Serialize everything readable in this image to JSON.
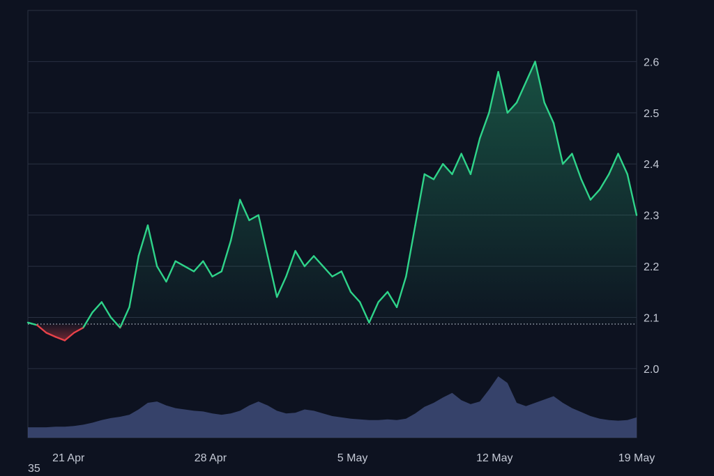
{
  "chart_data": {
    "type": "area",
    "title": "",
    "xlabel": "",
    "ylabel": "",
    "x_ticks": [
      "21 Apr",
      "28 Apr",
      "5 May",
      "12 May",
      "19 May"
    ],
    "y_ticks": [
      "2.0",
      "2.1",
      "2.2",
      "2.3",
      "2.4",
      "2.5",
      "2.6"
    ],
    "ylim": [
      1.865,
      2.7
    ],
    "baseline": 2.087,
    "grid": true,
    "legend": "none",
    "colors": {
      "up_line": "#2fd48a",
      "down_line": "#e8424a",
      "volume": "#3e4b78",
      "grid": "#2a3142",
      "background": "#0d1220"
    },
    "series": [
      {
        "type": "line",
        "x": [
          "Apr 19",
          "Apr 19",
          "Apr 20",
          "Apr 20",
          "Apr 20",
          "Apr 21",
          "Apr 21",
          "Apr 22",
          "Apr 22",
          "Apr 22",
          "Apr 23",
          "Apr 23",
          "Apr 24",
          "Apr 24",
          "Apr 24",
          "Apr 25",
          "Apr 25",
          "Apr 26",
          "Apr 26",
          "Apr 27",
          "Apr 27",
          "Apr 27",
          "Apr 28",
          "Apr 28",
          "Apr 29",
          "Apr 29",
          "Apr 30",
          "Apr 30",
          "May 1",
          "May 1",
          "May 2",
          "May 2",
          "May 3",
          "May 3",
          "May 4",
          "May 4",
          "May 5",
          "May 5",
          "May 6",
          "May 6",
          "May 7",
          "May 7",
          "May 8",
          "May 8",
          "May 9",
          "May 9",
          "May 10",
          "May 10",
          "May 11",
          "May 11",
          "May 11",
          "May 12",
          "May 12",
          "May 13",
          "May 13",
          "May 14",
          "May 14",
          "May 15",
          "May 15",
          "May 16",
          "May 16",
          "May 17",
          "May 17",
          "May 18",
          "May 18",
          "May 19",
          "May 19"
        ],
        "values": [
          2.09,
          2.085,
          2.07,
          2.062,
          2.055,
          2.07,
          2.08,
          2.11,
          2.13,
          2.1,
          2.08,
          2.12,
          2.22,
          2.28,
          2.2,
          2.17,
          2.21,
          2.2,
          2.19,
          2.21,
          2.18,
          2.19,
          2.25,
          2.33,
          2.29,
          2.3,
          2.22,
          2.14,
          2.18,
          2.23,
          2.2,
          2.22,
          2.2,
          2.18,
          2.19,
          2.15,
          2.13,
          2.09,
          2.13,
          2.15,
          2.12,
          2.18,
          2.28,
          2.38,
          2.37,
          2.4,
          2.38,
          2.42,
          2.38,
          2.45,
          2.5,
          2.58,
          2.5,
          2.52,
          2.56,
          2.6,
          2.52,
          2.48,
          2.4,
          2.42,
          2.37,
          2.33,
          2.35,
          2.38,
          2.42,
          2.38,
          2.3
        ]
      },
      {
        "type": "volume",
        "values": [
          3,
          3,
          3,
          4,
          4,
          5,
          7,
          10,
          14,
          17,
          19,
          22,
          30,
          40,
          42,
          36,
          32,
          30,
          28,
          27,
          24,
          22,
          24,
          28,
          36,
          42,
          36,
          28,
          24,
          25,
          30,
          28,
          24,
          20,
          18,
          16,
          15,
          14,
          14,
          15,
          14,
          16,
          24,
          34,
          40,
          48,
          55,
          44,
          38,
          42,
          60,
          80,
          70,
          40,
          35,
          40,
          45,
          50,
          40,
          32,
          26,
          20,
          16,
          14,
          13,
          14,
          18
        ]
      }
    ]
  },
  "footer": {
    "corner_label": "35"
  }
}
